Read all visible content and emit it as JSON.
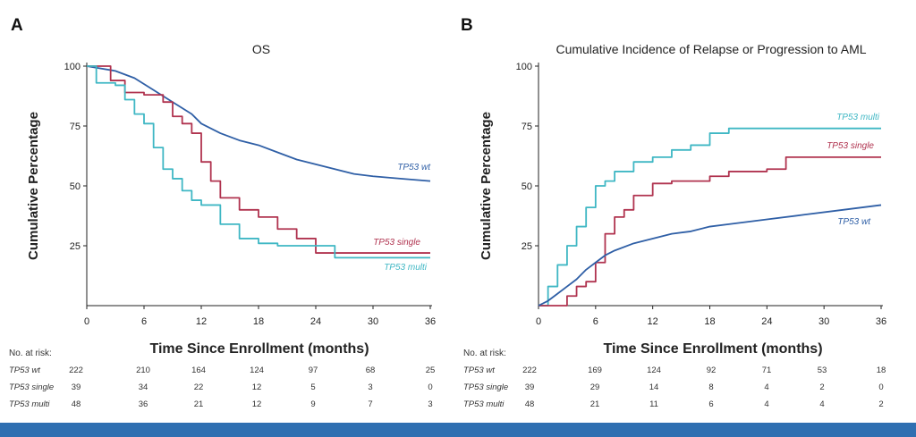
{
  "chart_data": [
    {
      "panel": "A",
      "type": "line",
      "title": "OS",
      "xlabel": "Time Since Enrollment (months)",
      "ylabel": "Cumulative Percentage",
      "xlim": [
        0,
        36
      ],
      "ylim": [
        0,
        100
      ],
      "xticks": [
        0,
        6,
        12,
        18,
        24,
        30,
        36
      ],
      "yticks": [
        25,
        50,
        75,
        100
      ],
      "grid": false,
      "series": [
        {
          "name": "TP53 wt",
          "color": "#2f5fa6",
          "step": false,
          "x": [
            0,
            3,
            5,
            7,
            9,
            11,
            12,
            14,
            16,
            18,
            20,
            22,
            24,
            26,
            28,
            30,
            33,
            36
          ],
          "y": [
            100,
            98,
            95,
            90,
            85,
            80,
            76,
            72,
            69,
            67,
            64,
            61,
            59,
            57,
            55,
            54,
            53,
            52
          ]
        },
        {
          "name": "TP53 single",
          "color": "#b0334f",
          "step": true,
          "x": [
            0,
            2.5,
            4,
            6,
            8,
            9,
            10,
            11,
            12,
            13,
            14,
            16,
            18,
            20,
            22,
            24,
            36
          ],
          "y": [
            100,
            94,
            89,
            88,
            85,
            79,
            76,
            72,
            60,
            52,
            45,
            40,
            37,
            32,
            28,
            22,
            22
          ]
        },
        {
          "name": "TP53 multi",
          "color": "#3fb7c4",
          "step": true,
          "x": [
            0,
            1,
            3,
            4,
            5,
            6,
            7,
            8,
            9,
            10,
            11,
            12,
            14,
            16,
            18,
            20,
            22,
            26,
            36
          ],
          "y": [
            100,
            93,
            92,
            86,
            80,
            76,
            66,
            57,
            53,
            48,
            44,
            42,
            34,
            28,
            26,
            25,
            25,
            20,
            20
          ]
        }
      ],
      "curve_labels": [
        "TP53 wt",
        "TP53 single",
        "TP53 multi"
      ],
      "risk_table": {
        "header": "No. at risk:",
        "times": [
          0,
          6,
          12,
          18,
          24,
          30,
          36
        ],
        "rows": [
          {
            "name": "TP53 wt",
            "values": [
              "222",
              "210",
              "164",
              "124",
              "97",
              "68",
              "25"
            ]
          },
          {
            "name": "TP53 single",
            "values": [
              "39",
              "34",
              "22",
              "12",
              "5",
              "3",
              "0"
            ]
          },
          {
            "name": "TP53 multi",
            "values": [
              "48",
              "36",
              "21",
              "12",
              "9",
              "7",
              "3"
            ]
          }
        ]
      }
    },
    {
      "panel": "B",
      "type": "line",
      "title": "Cumulative Incidence of Relapse or Progression to AML",
      "xlabel": "Time Since Enrollment (months)",
      "ylabel": "Cumulative Percentage",
      "xlim": [
        0,
        36
      ],
      "ylim": [
        0,
        100
      ],
      "xticks": [
        0,
        6,
        12,
        18,
        24,
        30,
        36
      ],
      "yticks": [
        25,
        50,
        75,
        100
      ],
      "grid": false,
      "series": [
        {
          "name": "TP53 multi",
          "color": "#3fb7c4",
          "step": true,
          "x": [
            0,
            1,
            2,
            3,
            4,
            5,
            6,
            7,
            8,
            10,
            12,
            14,
            16,
            18,
            20,
            36
          ],
          "y": [
            0,
            8,
            17,
            25,
            33,
            41,
            50,
            52,
            56,
            60,
            62,
            65,
            67,
            72,
            74,
            74
          ]
        },
        {
          "name": "TP53 single",
          "color": "#b0334f",
          "step": true,
          "x": [
            0,
            2,
            3,
            4,
            5,
            6,
            7,
            8,
            9,
            10,
            12,
            14,
            18,
            20,
            24,
            26,
            30,
            36
          ],
          "y": [
            0,
            0,
            4,
            8,
            10,
            18,
            30,
            37,
            40,
            46,
            51,
            52,
            54,
            56,
            57,
            62,
            62,
            62
          ]
        },
        {
          "name": "TP53 wt",
          "color": "#2f5fa6",
          "step": false,
          "x": [
            0,
            1,
            2,
            3,
            4,
            5,
            6,
            7,
            8,
            10,
            12,
            14,
            16,
            18,
            20,
            24,
            28,
            32,
            36
          ],
          "y": [
            0,
            2,
            5,
            8,
            11,
            15,
            18,
            21,
            23,
            26,
            28,
            30,
            31,
            33,
            34,
            36,
            38,
            40,
            42
          ]
        }
      ],
      "curve_labels": [
        "TP53 multi",
        "TP53 single",
        "TP53 wt"
      ],
      "risk_table": {
        "header": "No. at risk:",
        "times": [
          0,
          6,
          12,
          18,
          24,
          30,
          36
        ],
        "rows": [
          {
            "name": "TP53 wt",
            "values": [
              "222",
              "169",
              "124",
              "92",
              "71",
              "53",
              "18"
            ]
          },
          {
            "name": "TP53 single",
            "values": [
              "39",
              "29",
              "14",
              "8",
              "4",
              "2",
              "0"
            ]
          },
          {
            "name": "TP53 multi",
            "values": [
              "48",
              "21",
              "11",
              "6",
              "4",
              "4",
              "2"
            ]
          }
        ]
      }
    }
  ]
}
